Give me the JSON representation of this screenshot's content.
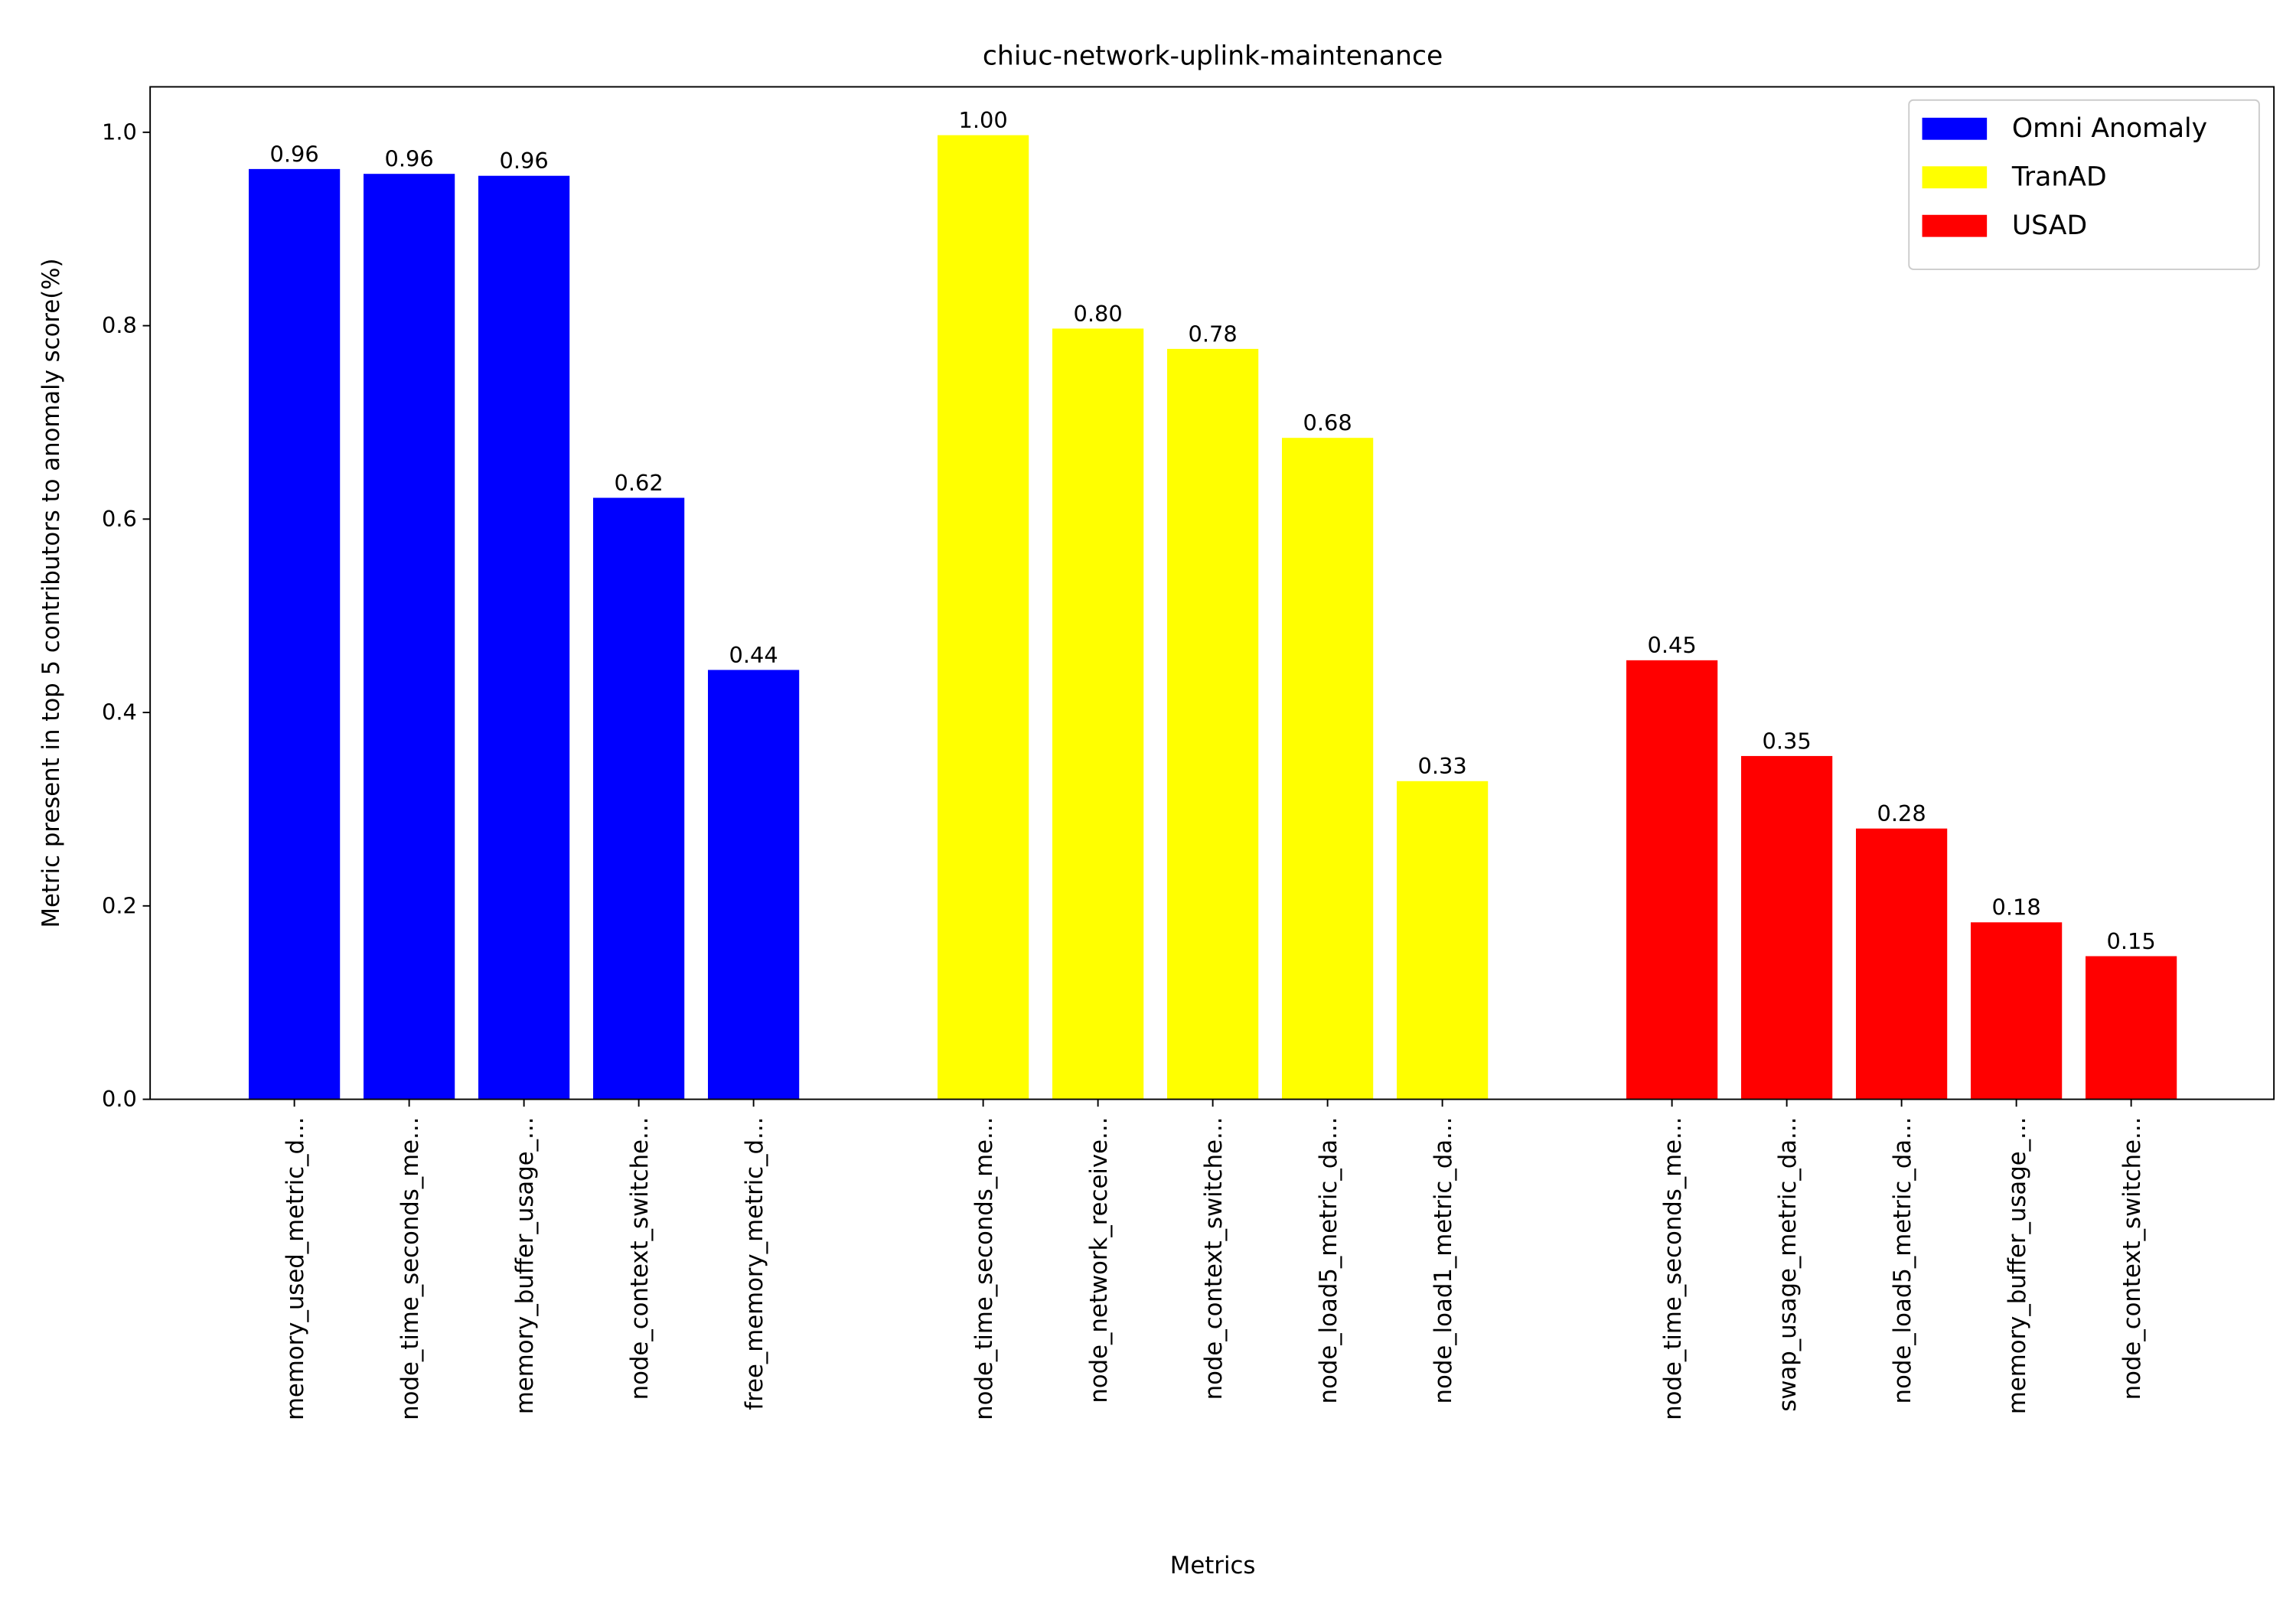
{
  "chart_data": {
    "type": "bar",
    "title": "chiuc-network-uplink-maintenance",
    "x_label": "Metrics",
    "y_label": "Metric present in top 5 contributors to anomaly score(%)",
    "ylim": [
      0,
      1.047
    ],
    "yticks": [
      {
        "value": 0,
        "label": "0.0"
      },
      0.2,
      0.4,
      0.6,
      0.8,
      {
        "value": 1,
        "label": "1.0"
      }
    ],
    "legend": "upper right",
    "series": [
      {
        "name": "Omni Anomaly",
        "color": "#0000ff",
        "categories": [
          "memory_used_metric_d...",
          "node_time_seconds_me...",
          "memory_buffer_usage_...",
          "node_context_switche...",
          "free_memory_metric_d..."
        ],
        "values": [
          0.962,
          0.957,
          0.955,
          0.622,
          0.444
        ],
        "value_labels": [
          "0.96",
          "0.96",
          "0.96",
          "0.62",
          "0.44"
        ]
      },
      {
        "name": "TranAD",
        "color": "#ffff00",
        "categories": [
          "node_time_seconds_me...",
          "node_network_receive...",
          "node_context_switche...",
          "node_load5_metric_da...",
          "node_load1_metric_da..."
        ],
        "values": [
          0.997,
          0.797,
          0.776,
          0.684,
          0.329
        ],
        "value_labels": [
          "1.00",
          "0.80",
          "0.78",
          "0.68",
          "0.33"
        ]
      },
      {
        "name": "USAD",
        "color": "#ff0000",
        "categories": [
          "node_time_seconds_me...",
          "swap_usage_metric_da...",
          "node_load5_metric_da...",
          "memory_buffer_usage_...",
          "node_context_switche..."
        ],
        "values": [
          0.454,
          0.355,
          0.28,
          0.183,
          0.148
        ],
        "value_labels": [
          "0.45",
          "0.35",
          "0.28",
          "0.18",
          "0.15"
        ]
      }
    ]
  }
}
